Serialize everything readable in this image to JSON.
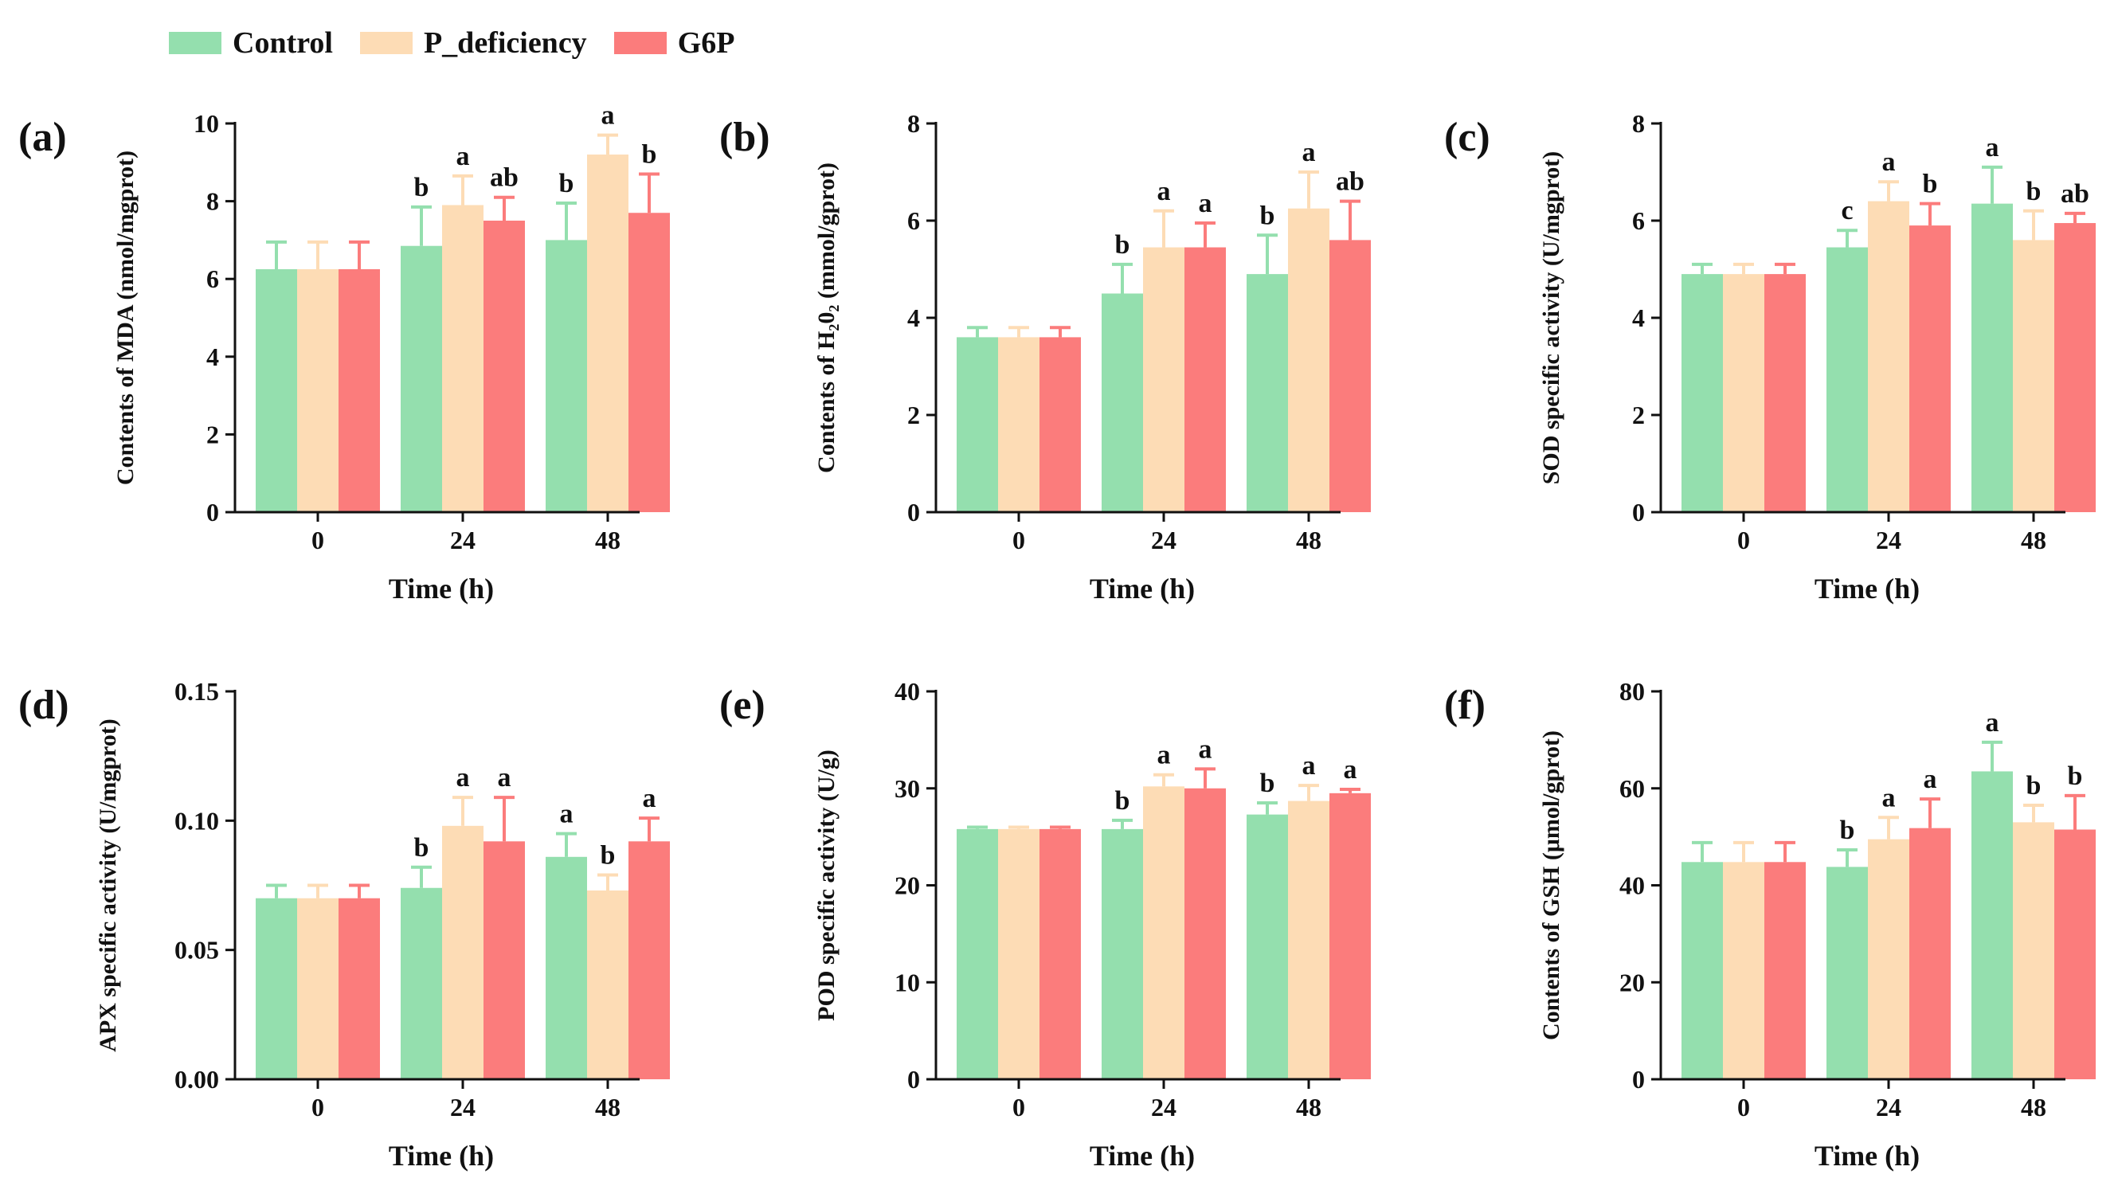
{
  "legend": [
    {
      "label": "Control",
      "color": "#94dfae"
    },
    {
      "label": "P_deficiency",
      "color": "#fddcb5"
    },
    {
      "label": "G6P",
      "color": "#fb7c7c"
    }
  ],
  "chart_data": [
    {
      "type": "bar",
      "panel": "(a)",
      "xlabel": "Time (h)",
      "ylabel": "Contents of MDA (nmol/mgprot)",
      "categories": [
        "0",
        "24",
        "48"
      ],
      "ylim": [
        0,
        10
      ],
      "yticks": [
        "0",
        "2",
        "4",
        "6",
        "8",
        "10"
      ],
      "series": [
        {
          "name": "Control",
          "values": [
            6.25,
            6.85,
            7.0
          ],
          "errors": [
            0.7,
            1.0,
            0.95
          ],
          "labels": [
            "",
            "b",
            "b"
          ]
        },
        {
          "name": "P_deficiency",
          "values": [
            6.25,
            7.9,
            9.2
          ],
          "errors": [
            0.7,
            0.75,
            0.5
          ],
          "labels": [
            "",
            "a",
            "a"
          ]
        },
        {
          "name": "G6P",
          "values": [
            6.25,
            7.5,
            7.7
          ],
          "errors": [
            0.7,
            0.6,
            1.0
          ],
          "labels": [
            "",
            "ab",
            "b"
          ]
        }
      ]
    },
    {
      "type": "bar",
      "panel": "(b)",
      "xlabel": "Time (h)",
      "ylabel": "Contents of H₂0₂ (mmol/gprot)",
      "categories": [
        "0",
        "24",
        "48"
      ],
      "ylim": [
        0,
        8
      ],
      "yticks": [
        "0",
        "2",
        "4",
        "6",
        "8"
      ],
      "series": [
        {
          "name": "Control",
          "values": [
            3.6,
            4.5,
            4.9
          ],
          "errors": [
            0.2,
            0.6,
            0.8
          ],
          "labels": [
            "",
            "b",
            "b"
          ]
        },
        {
          "name": "P_deficiency",
          "values": [
            3.6,
            5.45,
            6.25
          ],
          "errors": [
            0.2,
            0.75,
            0.75
          ],
          "labels": [
            "",
            "a",
            "a"
          ]
        },
        {
          "name": "G6P",
          "values": [
            3.6,
            5.45,
            5.6
          ],
          "errors": [
            0.2,
            0.5,
            0.8
          ],
          "labels": [
            "",
            "a",
            "ab"
          ]
        }
      ]
    },
    {
      "type": "bar",
      "panel": "(c)",
      "xlabel": "Time (h)",
      "ylabel": "SOD specific activity (U/mgprot)",
      "categories": [
        "0",
        "24",
        "48"
      ],
      "ylim": [
        0,
        8
      ],
      "yticks": [
        "0",
        "2",
        "4",
        "6",
        "8"
      ],
      "series": [
        {
          "name": "Control",
          "values": [
            4.9,
            5.45,
            6.35
          ],
          "errors": [
            0.2,
            0.35,
            0.75
          ],
          "labels": [
            "",
            "c",
            "a"
          ]
        },
        {
          "name": "P_deficiency",
          "values": [
            4.9,
            6.4,
            5.6
          ],
          "errors": [
            0.2,
            0.4,
            0.6
          ],
          "labels": [
            "",
            "a",
            "b"
          ]
        },
        {
          "name": "G6P",
          "values": [
            4.9,
            5.9,
            5.95
          ],
          "errors": [
            0.2,
            0.45,
            0.2
          ],
          "labels": [
            "",
            "b",
            "ab"
          ]
        }
      ]
    },
    {
      "type": "bar",
      "panel": "(d)",
      "xlabel": "Time (h)",
      "ylabel": "APX specific activity (U/mgprot)",
      "categories": [
        "0",
        "24",
        "48"
      ],
      "ylim": [
        0,
        0.15
      ],
      "yticks": [
        "0.00",
        "0.05",
        "0.10",
        "0.15"
      ],
      "series": [
        {
          "name": "Control",
          "values": [
            0.07,
            0.074,
            0.086
          ],
          "errors": [
            0.005,
            0.008,
            0.009
          ],
          "labels": [
            "",
            "b",
            "a"
          ]
        },
        {
          "name": "P_deficiency",
          "values": [
            0.07,
            0.098,
            0.073
          ],
          "errors": [
            0.005,
            0.011,
            0.006
          ],
          "labels": [
            "",
            "a",
            "b"
          ]
        },
        {
          "name": "G6P",
          "values": [
            0.07,
            0.092,
            0.092
          ],
          "errors": [
            0.005,
            0.017,
            0.009
          ],
          "labels": [
            "",
            "a",
            "a"
          ]
        }
      ]
    },
    {
      "type": "bar",
      "panel": "(e)",
      "xlabel": "Time (h)",
      "ylabel": "POD specific activity (U/g)",
      "categories": [
        "0",
        "24",
        "48"
      ],
      "ylim": [
        0,
        40
      ],
      "yticks": [
        "0",
        "10",
        "20",
        "30",
        "40"
      ],
      "series": [
        {
          "name": "Control",
          "values": [
            25.8,
            25.8,
            27.3
          ],
          "errors": [
            0.2,
            0.9,
            1.2
          ],
          "labels": [
            "",
            "b",
            "b"
          ]
        },
        {
          "name": "P_deficiency",
          "values": [
            25.8,
            30.2,
            28.7
          ],
          "errors": [
            0.2,
            1.2,
            1.6
          ],
          "labels": [
            "",
            "a",
            "a"
          ]
        },
        {
          "name": "G6P",
          "values": [
            25.8,
            30.0,
            29.5
          ],
          "errors": [
            0.2,
            2.0,
            0.4
          ],
          "labels": [
            "",
            "a",
            "a"
          ]
        }
      ]
    },
    {
      "type": "bar",
      "panel": "(f)",
      "xlabel": "Time (h)",
      "ylabel": "Contents of GSH (μmol/gprot)",
      "categories": [
        "0",
        "24",
        "48"
      ],
      "ylim": [
        0,
        80
      ],
      "yticks": [
        "0",
        "20",
        "40",
        "60",
        "80"
      ],
      "series": [
        {
          "name": "Control",
          "values": [
            44.8,
            43.8,
            63.5
          ],
          "errors": [
            4.0,
            3.5,
            6.0
          ],
          "labels": [
            "",
            "b",
            "a"
          ]
        },
        {
          "name": "P_deficiency",
          "values": [
            44.8,
            49.5,
            53.0
          ],
          "errors": [
            4.0,
            4.5,
            3.5
          ],
          "labels": [
            "",
            "a",
            "b"
          ]
        },
        {
          "name": "G6P",
          "values": [
            44.8,
            51.8,
            51.5
          ],
          "errors": [
            4.0,
            6.0,
            7.0
          ],
          "labels": [
            "",
            "a",
            "b"
          ]
        }
      ]
    }
  ]
}
